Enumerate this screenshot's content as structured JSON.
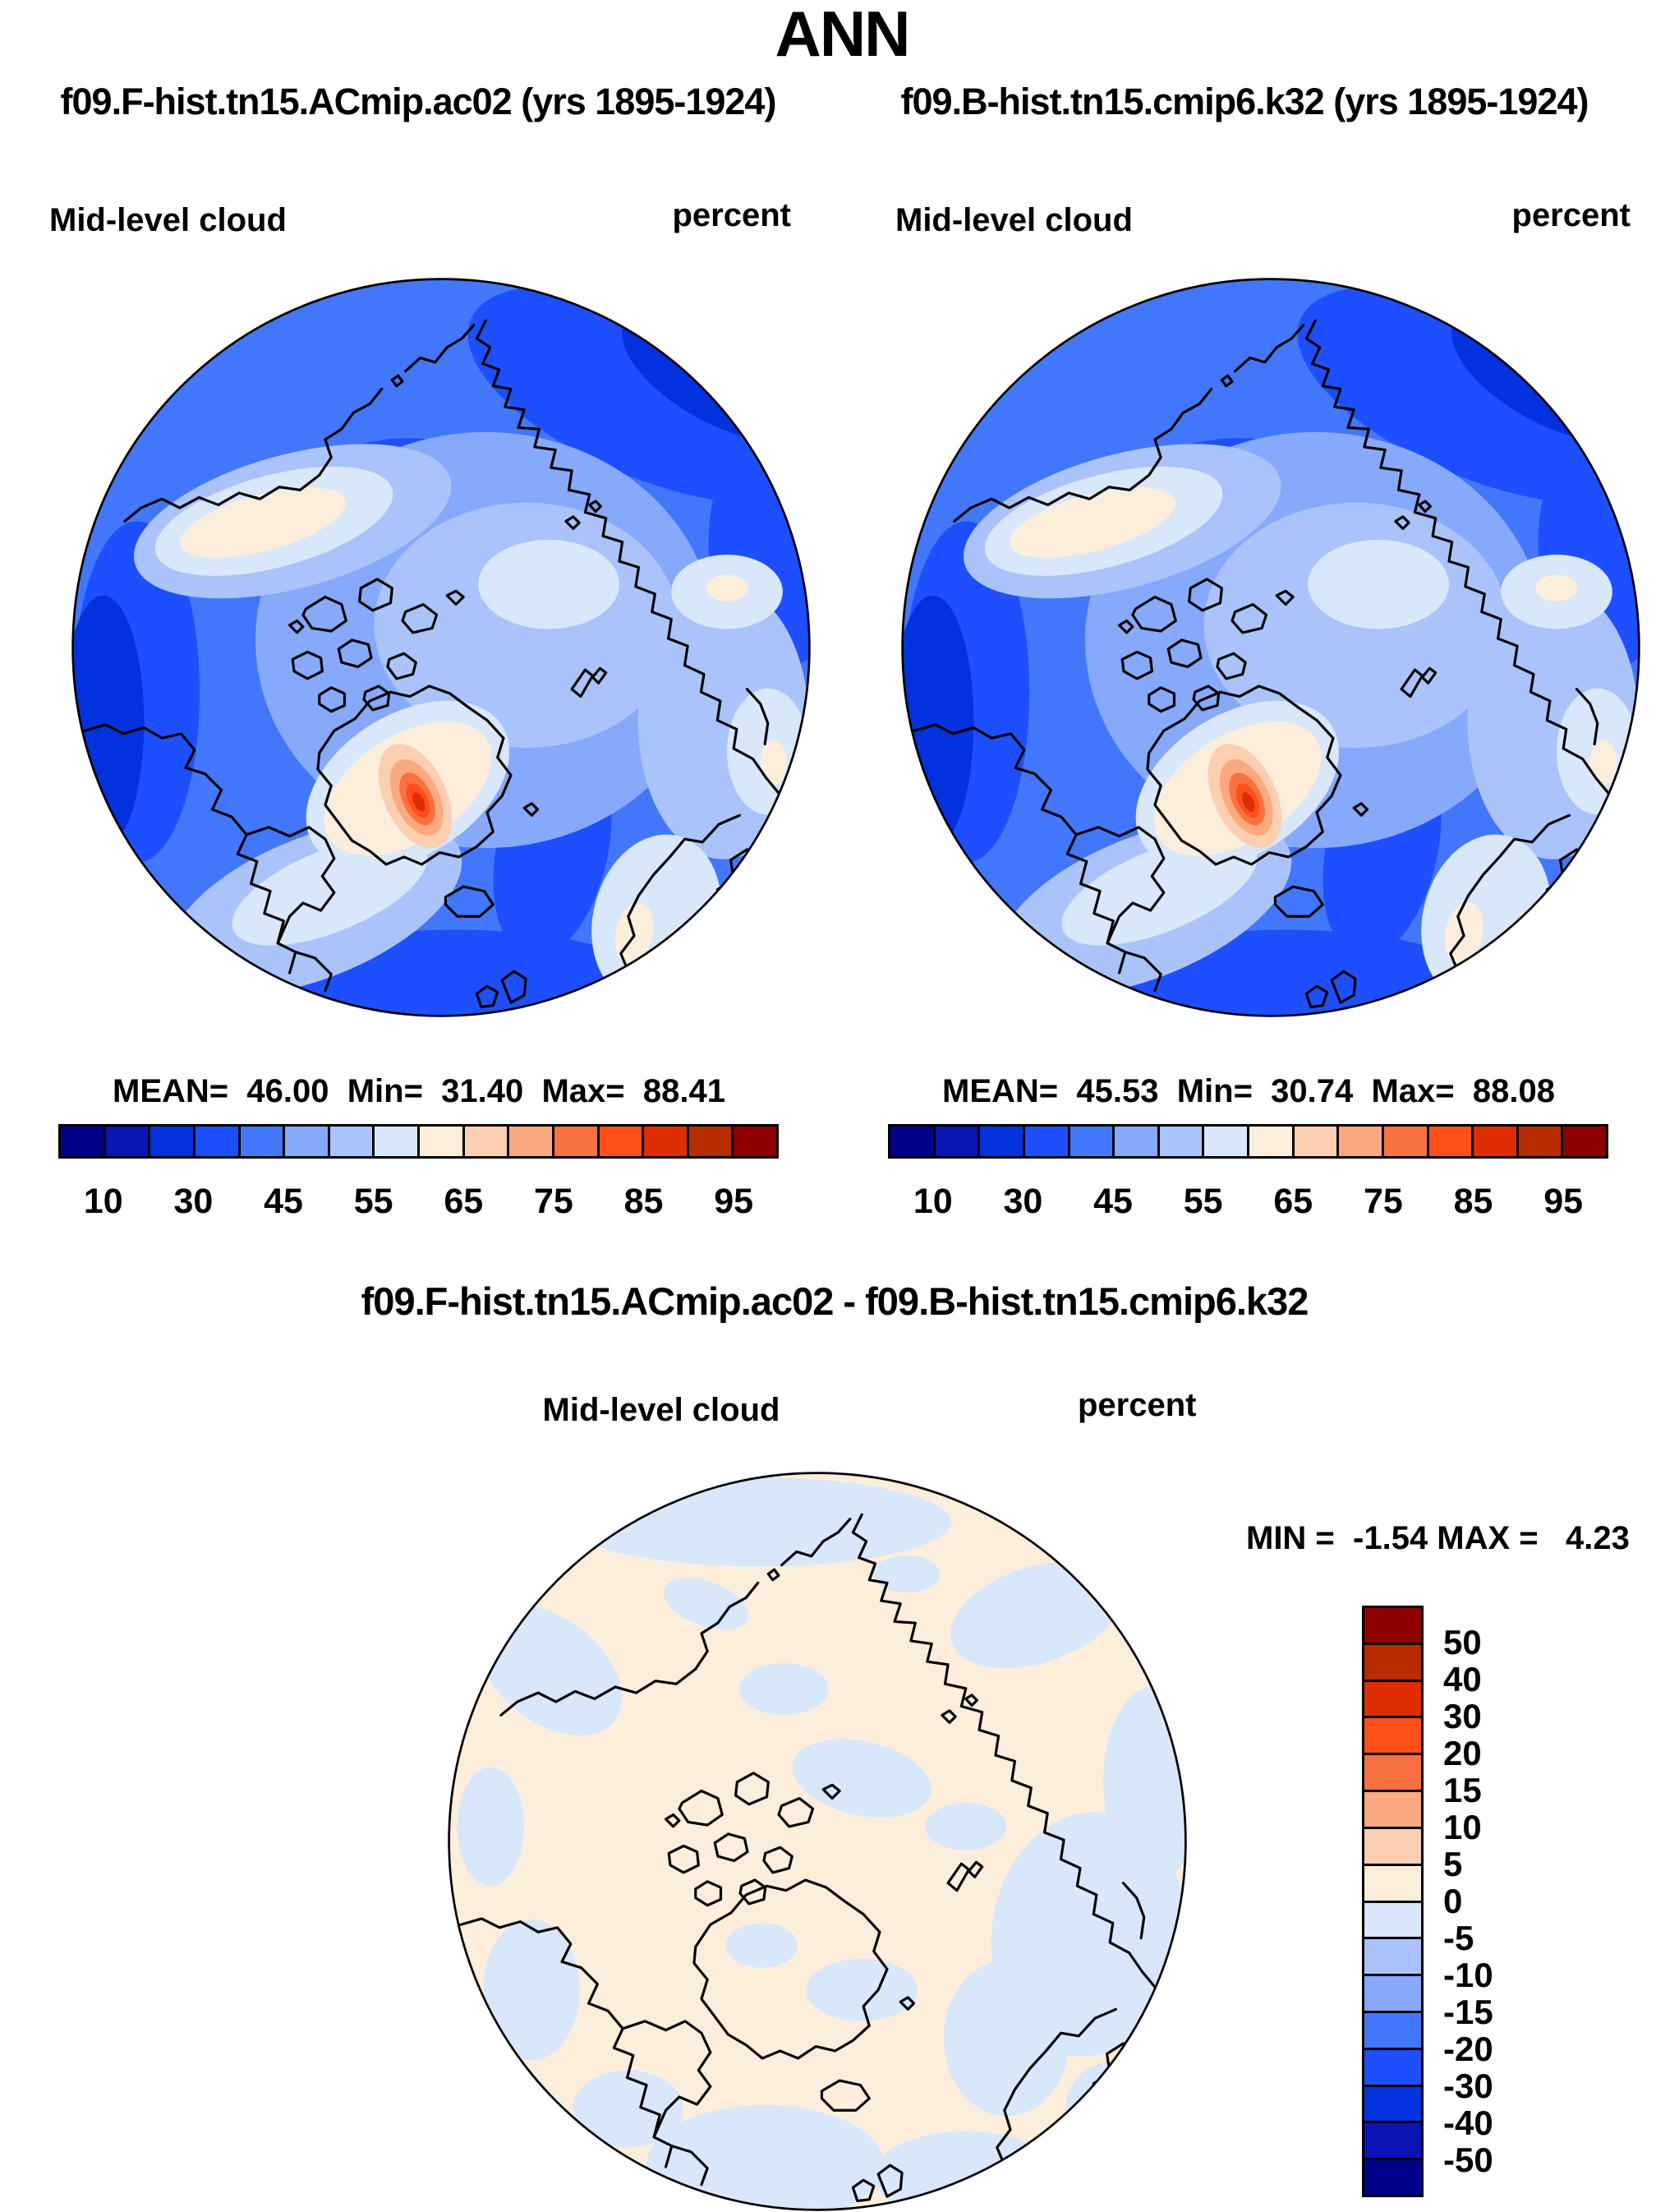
{
  "page_title": "ANN",
  "top": {
    "left": {
      "header": "f09.F-hist.tn15.ACmip.ac02 (yrs 1895-1924)",
      "field_label": "Mid-level cloud",
      "units": "percent",
      "stats_text": "MEAN=  46.00  Min=  31.40  Max=  88.41"
    },
    "right": {
      "header": "f09.B-hist.tn15.cmip6.k32 (yrs 1895-1924)",
      "field_label": "Mid-level cloud",
      "units": "percent",
      "stats_text": "MEAN=  45.53  Min=  30.74  Max=  88.08"
    }
  },
  "colorbar_top": {
    "tick_labels": [
      "10",
      "30",
      "45",
      "55",
      "65",
      "75",
      "85",
      "95"
    ],
    "colors": [
      "#00008B",
      "#0A14B4",
      "#0232DD",
      "#1E4FFF",
      "#4377FB",
      "#87A9FB",
      "#ABC3FB",
      "#D9E7FB",
      "#FDEEDC",
      "#FCCFB0",
      "#FCA981",
      "#FA7140",
      "#FF5019",
      "#DE2D00",
      "#B72C00",
      "#8C0000"
    ]
  },
  "diff": {
    "title": "f09.F-hist.tn15.ACmip.ac02 - f09.B-hist.tn15.cmip6.k32",
    "field_label": "Mid-level cloud",
    "units": "percent",
    "minmax_text": "MIN =  -1.54 MAX =   4.23",
    "colorbar": {
      "tick_labels": [
        "50",
        "40",
        "30",
        "20",
        "15",
        "10",
        "5",
        "0",
        "-5",
        "-10",
        "-15",
        "-20",
        "-30",
        "-40",
        "-50"
      ],
      "colors": [
        "#8C0000",
        "#B72C00",
        "#DE2D00",
        "#FF5019",
        "#FA7140",
        "#FCA981",
        "#FCCFB0",
        "#FDEEDC",
        "#D9E7FB",
        "#ABC3FB",
        "#87A9FB",
        "#4377FB",
        "#1E4FFF",
        "#0232DD",
        "#0A14B4",
        "#00008B"
      ]
    }
  },
  "chart_data": [
    {
      "type": "heatmap",
      "subtype": "polar-stereographic-filled-contour-map",
      "season": "ANN",
      "title": "f09.F-hist.tn15.ACmip.ac02 (yrs 1895-1924)",
      "variable": "Mid-level cloud",
      "units": "percent",
      "stats": {
        "mean": 46.0,
        "min": 31.4,
        "max": 88.41
      },
      "colorbar_tick_labels": [
        10,
        30,
        45,
        55,
        65,
        75,
        85,
        95
      ],
      "n_color_bins": 16,
      "legend_position": "bottom",
      "notes": "Arctic polar view; mostly 35-55% blues, cream band over Alaska, warm maximum (to ~88%) over southeast Greenland"
    },
    {
      "type": "heatmap",
      "subtype": "polar-stereographic-filled-contour-map",
      "season": "ANN",
      "title": "f09.B-hist.tn15.cmip6.k32 (yrs 1895-1924)",
      "variable": "Mid-level cloud",
      "units": "percent",
      "stats": {
        "mean": 45.53,
        "min": 30.74,
        "max": 88.08
      },
      "colorbar_tick_labels": [
        10,
        30,
        45,
        55,
        65,
        75,
        85,
        95
      ],
      "n_color_bins": 16,
      "legend_position": "bottom",
      "notes": "Nearly identical pattern to first panel"
    },
    {
      "type": "heatmap",
      "subtype": "polar-stereographic-difference-map",
      "title": "f09.F-hist.tn15.ACmip.ac02 - f09.B-hist.tn15.cmip6.k32",
      "variable": "Mid-level cloud",
      "units": "percent",
      "stats": {
        "min": -1.54,
        "max": 4.23
      },
      "colorbar_tick_labels": [
        50,
        40,
        30,
        20,
        15,
        10,
        5,
        0,
        -5,
        -10,
        -15,
        -20,
        -30,
        -40,
        -50
      ],
      "n_color_bins": 16,
      "legend_position": "right",
      "notes": "Differences small: mostly 0 to +5 (cream) with scattered -5 to 0 (pale blue) patches"
    }
  ]
}
